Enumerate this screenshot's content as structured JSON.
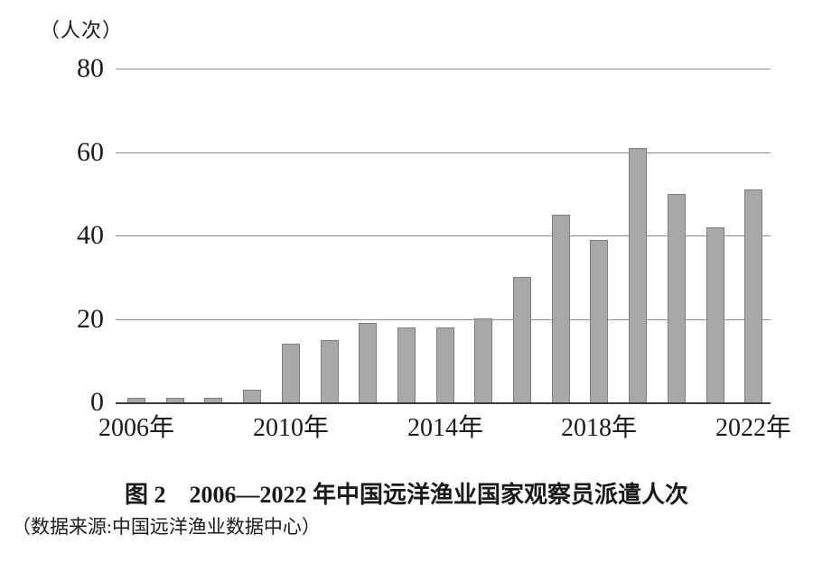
{
  "figure": {
    "unit_label": "（人次）",
    "title": "图 2　2006—2022 年中国远洋渔业国家观察员派遣人次",
    "source": "（数据来源:中国远洋渔业数据中心）"
  },
  "chart_data": {
    "type": "bar",
    "title": "图 2　2006—2022 年中国远洋渔业国家观察员派遣人次",
    "subtitle": "（数据来源:中国远洋渔业数据中心）",
    "xlabel": "",
    "ylabel": "（人次）",
    "ylim": [
      0,
      80
    ],
    "yticks": [
      0,
      20,
      40,
      60,
      80
    ],
    "grid": true,
    "legend": false,
    "categories": [
      "2006年",
      "2007年",
      "2008年",
      "2009年",
      "2010年",
      "2011年",
      "2012年",
      "2013年",
      "2014年",
      "2015年",
      "2016年",
      "2017年",
      "2018年",
      "2019年",
      "2020年",
      "2021年",
      "2022年"
    ],
    "values": [
      1,
      1,
      1,
      3,
      14,
      15,
      19,
      18,
      18,
      20,
      30,
      45,
      39,
      61,
      50,
      42,
      51
    ],
    "xtick_labels": [
      "2006年",
      "2010年",
      "2014年",
      "2018年",
      "2022年"
    ],
    "xtick_category_indexes": [
      0,
      4,
      8,
      12,
      16
    ],
    "bar_fill_color": "#a8a8a8",
    "bar_border_color": "#7d7d7d",
    "gridline_color": "#8f8f8f",
    "axis_color": "#3b3b3b"
  }
}
